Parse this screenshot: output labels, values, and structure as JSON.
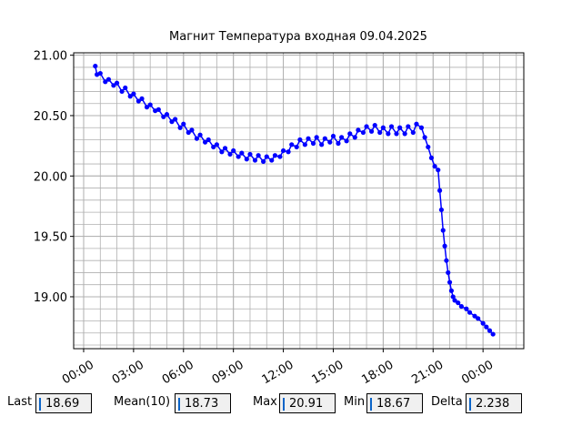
{
  "chart_data": {
    "type": "line",
    "title": "Магнит Температура входная 09.04.2025",
    "xlim": [
      -0.6,
      26.45
    ],
    "ylim": [
      18.57,
      21.02
    ],
    "xticks": [
      {
        "value": 0,
        "label": "00:00"
      },
      {
        "value": 3,
        "label": "03:00"
      },
      {
        "value": 6,
        "label": "06:00"
      },
      {
        "value": 9,
        "label": "09:00"
      },
      {
        "value": 12,
        "label": "12:00"
      },
      {
        "value": 15,
        "label": "15:00"
      },
      {
        "value": 18,
        "label": "18:00"
      },
      {
        "value": 21,
        "label": "21:00"
      },
      {
        "value": 24,
        "label": "00:00"
      }
    ],
    "yticks": [
      {
        "value": 19,
        "label": "19.00"
      },
      {
        "value": 19.5,
        "label": "19.50"
      },
      {
        "value": 20,
        "label": "20.00"
      },
      {
        "value": 20.5,
        "label": "20.50"
      },
      {
        "value": 21,
        "label": "21.00"
      }
    ],
    "grid": true,
    "minor_grid": true,
    "series": [
      {
        "color": "#0000ff",
        "x": [
          0.7,
          0.8,
          1.0,
          1.3,
          1.5,
          1.8,
          2.0,
          2.3,
          2.5,
          2.8,
          3.0,
          3.3,
          3.5,
          3.8,
          4.0,
          4.3,
          4.5,
          4.8,
          5.0,
          5.3,
          5.5,
          5.8,
          6.0,
          6.3,
          6.5,
          6.8,
          7.0,
          7.3,
          7.5,
          7.8,
          8.0,
          8.3,
          8.5,
          8.8,
          9.0,
          9.3,
          9.5,
          9.8,
          10.0,
          10.3,
          10.5,
          10.8,
          11.0,
          11.3,
          11.5,
          11.8,
          12.0,
          12.3,
          12.5,
          12.8,
          13.0,
          13.3,
          13.5,
          13.8,
          14.0,
          14.3,
          14.5,
          14.8,
          15.0,
          15.3,
          15.5,
          15.8,
          16.0,
          16.3,
          16.5,
          16.8,
          17.0,
          17.3,
          17.5,
          17.8,
          18.0,
          18.3,
          18.5,
          18.8,
          19.0,
          19.3,
          19.5,
          19.8,
          20.0,
          20.3,
          20.5,
          20.7,
          20.9,
          21.1,
          21.3,
          21.4,
          21.5,
          21.6,
          21.7,
          21.8,
          21.9,
          22.0,
          22.1,
          22.2,
          22.3,
          22.5,
          22.7,
          23.0,
          23.2,
          23.5,
          23.7,
          24.0,
          24.2,
          24.4,
          24.6
        ],
        "values": [
          20.91,
          20.84,
          20.85,
          20.78,
          20.8,
          20.75,
          20.77,
          20.7,
          20.73,
          20.66,
          20.68,
          20.62,
          20.64,
          20.57,
          20.59,
          20.54,
          20.55,
          20.49,
          20.51,
          20.45,
          20.47,
          20.4,
          20.43,
          20.36,
          20.38,
          20.31,
          20.34,
          20.28,
          20.3,
          20.24,
          20.26,
          20.2,
          20.23,
          20.18,
          20.21,
          20.16,
          20.19,
          20.14,
          20.18,
          20.13,
          20.17,
          20.12,
          20.16,
          20.13,
          20.17,
          20.16,
          20.21,
          20.2,
          20.26,
          20.24,
          20.3,
          20.26,
          20.31,
          20.27,
          20.32,
          20.26,
          20.31,
          20.28,
          20.33,
          20.27,
          20.32,
          20.29,
          20.35,
          20.32,
          20.38,
          20.36,
          20.41,
          20.37,
          20.42,
          20.36,
          20.4,
          20.35,
          20.41,
          20.35,
          20.4,
          20.35,
          20.41,
          20.36,
          20.43,
          20.4,
          20.32,
          20.24,
          20.15,
          20.08,
          20.05,
          19.88,
          19.72,
          19.55,
          19.42,
          19.3,
          19.2,
          19.12,
          19.05,
          19.0,
          18.97,
          18.95,
          18.92,
          18.9,
          18.87,
          18.84,
          18.82,
          18.78,
          18.75,
          18.72,
          18.69
        ]
      }
    ]
  },
  "readouts": [
    {
      "label": "Last",
      "value": 18.69
    },
    {
      "label": "Mean(10)",
      "value": 18.73
    },
    {
      "label": "Max",
      "value": 20.91
    },
    {
      "label": "Min",
      "value": 18.67
    },
    {
      "label": "Delta",
      "value": 2.238
    }
  ]
}
